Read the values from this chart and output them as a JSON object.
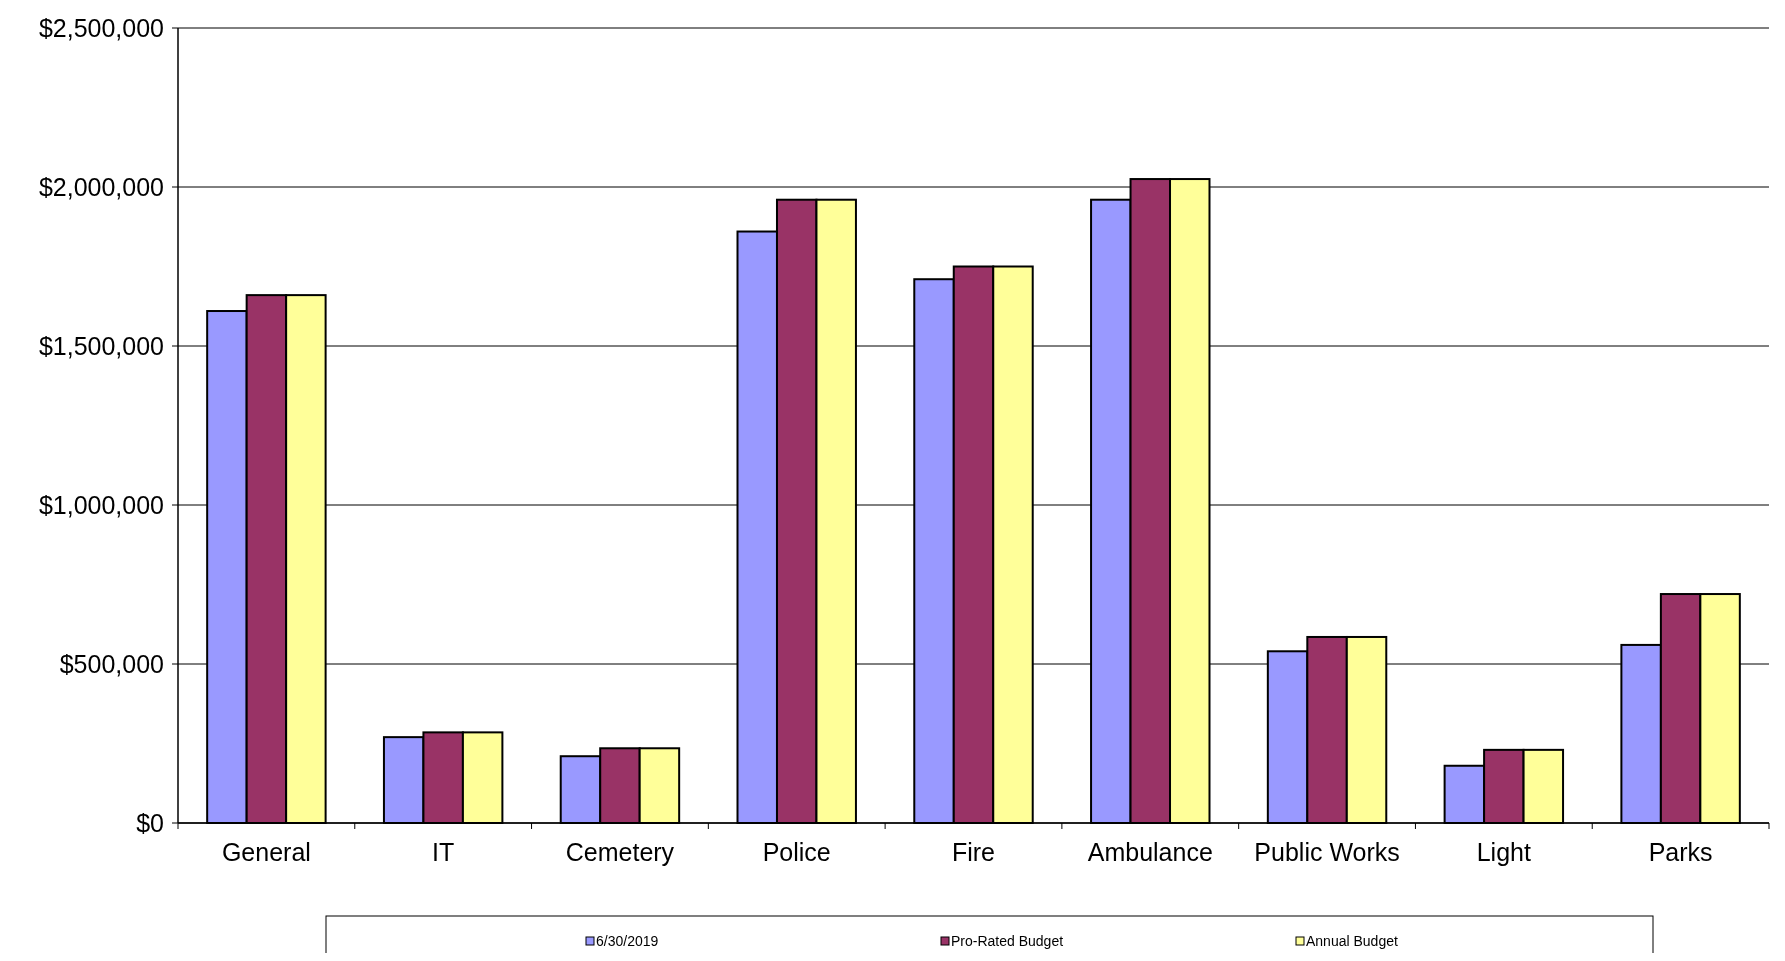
{
  "chart_data": {
    "type": "bar",
    "categories": [
      "General",
      "IT",
      "Cemetery",
      "Police",
      "Fire",
      "Ambulance",
      "Public Works",
      "Light",
      "Parks"
    ],
    "series": [
      {
        "name": "6/30/2019",
        "color": "#9999ff",
        "values": [
          1610000,
          270000,
          210000,
          1860000,
          1710000,
          1960000,
          540000,
          180000,
          560000
        ]
      },
      {
        "name": "Pro-Rated Budget",
        "color": "#993366",
        "values": [
          1660000,
          285000,
          235000,
          1960000,
          1750000,
          2025000,
          585000,
          230000,
          720000
        ]
      },
      {
        "name": "Annual Budget",
        "color": "#ffff99",
        "values": [
          1660000,
          285000,
          235000,
          1960000,
          1750000,
          2025000,
          585000,
          230000,
          720000
        ]
      }
    ],
    "ylim": [
      0,
      2500000
    ],
    "yticks": [
      {
        "value": 0,
        "label": "$0"
      },
      {
        "value": 500000,
        "label": "$500,000"
      },
      {
        "value": 1000000,
        "label": "$1,000,000"
      },
      {
        "value": 1500000,
        "label": "$1,500,000"
      },
      {
        "value": 2000000,
        "label": "$2,000,000"
      },
      {
        "value": 2500000,
        "label": "$2,500,000"
      }
    ],
    "grid": "y",
    "legend": "bottom"
  }
}
